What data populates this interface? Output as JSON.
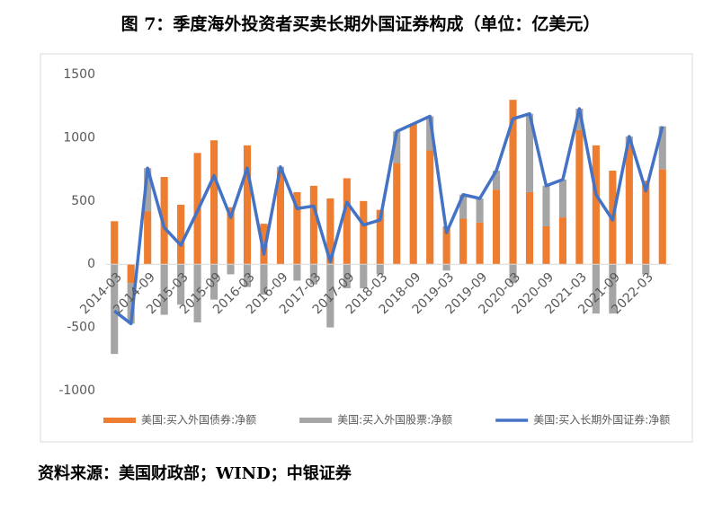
{
  "chart_data": {
    "type": "bar-line",
    "title": "图 7：季度海外投资者买卖长期外国证券构成（单位：亿美元）",
    "source": "资料来源：美国财政部；WIND；中银证券",
    "categories": [
      "2014-03",
      null,
      "2014-09",
      null,
      "2015-03",
      null,
      "2015-09",
      null,
      "2016-03",
      null,
      "2016-09",
      null,
      "2017-03",
      null,
      "2017-09",
      null,
      "2018-03",
      null,
      "2018-09",
      null,
      "2019-03",
      null,
      "2019-09",
      null,
      "2020-03",
      null,
      "2020-09",
      null,
      "2021-03",
      null,
      "2021-09",
      null,
      "2022-03",
      null
    ],
    "series": [
      {
        "name": "美国:买入外国债券:净额",
        "color": "#ed7d31",
        "kind": "bar",
        "values": [
          340,
          -150,
          420,
          690,
          470,
          880,
          980,
          450,
          940,
          320,
          730,
          570,
          620,
          520,
          680,
          500,
          430,
          800,
          1110,
          900,
          300,
          360,
          330,
          590,
          1300,
          570,
          300,
          370,
          1060,
          940,
          740,
          940,
          660,
          750
        ]
      },
      {
        "name": "美国:买入外国股票:净额",
        "color": "#a5a5a5",
        "kind": "bar",
        "values": [
          -710,
          -320,
          340,
          -400,
          -320,
          -460,
          -280,
          -80,
          -180,
          -240,
          40,
          -130,
          -160,
          -500,
          -190,
          -190,
          -80,
          250,
          0,
          270,
          -50,
          190,
          190,
          150,
          -150,
          620,
          320,
          300,
          170,
          -390,
          -390,
          70,
          -80,
          340
        ]
      },
      {
        "name": "美国:买入长期外国证券:净额",
        "color": "#4472c4",
        "kind": "line",
        "values": [
          -370,
          -470,
          760,
          290,
          150,
          420,
          700,
          370,
          760,
          80,
          770,
          440,
          460,
          20,
          490,
          310,
          350,
          1050,
          1110,
          1170,
          250,
          550,
          520,
          740,
          1150,
          1190,
          620,
          670,
          1230,
          550,
          350,
          1010,
          580,
          1090
        ]
      }
    ],
    "ylim": [
      -1000,
      1500
    ],
    "yticks": [
      {
        "value": -1000,
        "label": "-1000"
      },
      -500,
      0,
      500,
      1000,
      1500
    ],
    "grid": false,
    "legend": "bottom"
  }
}
